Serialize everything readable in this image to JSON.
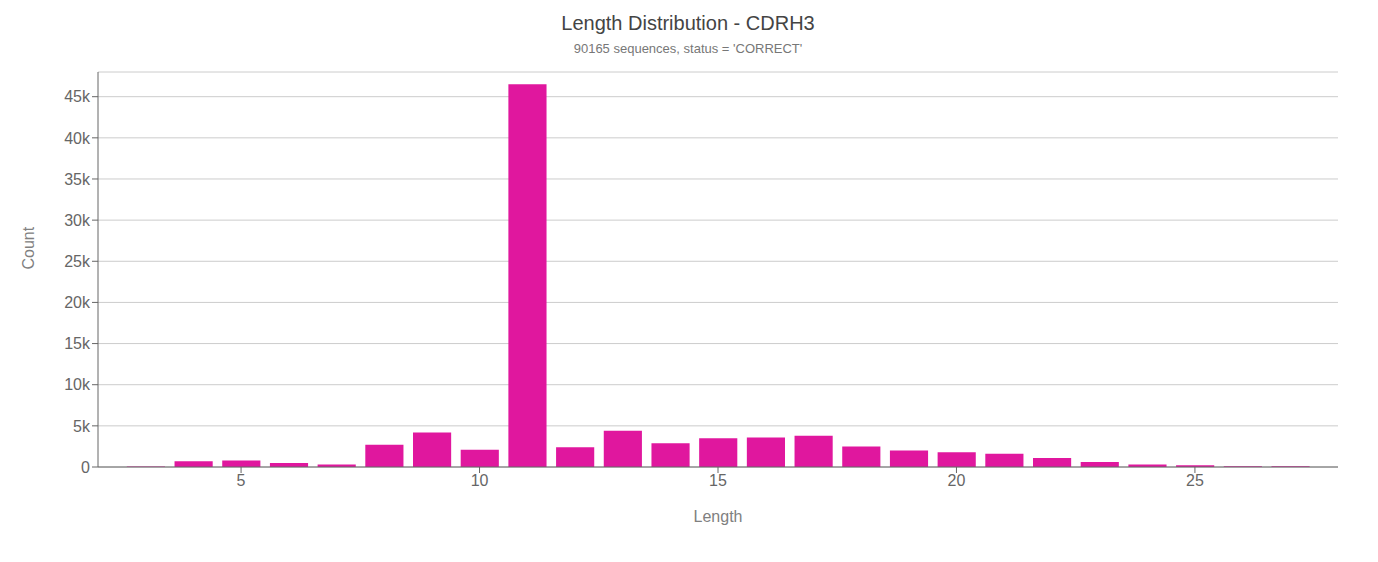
{
  "chart_data": {
    "type": "bar",
    "title": "Length Distribution - CDRH3",
    "subtitle": "90165 sequences, status = 'CORRECT'",
    "x_label": "Length",
    "y_label": "Count",
    "x": [
      3,
      4,
      5,
      6,
      7,
      8,
      9,
      10,
      11,
      12,
      13,
      14,
      15,
      16,
      17,
      18,
      19,
      20,
      21,
      22,
      23,
      24,
      25,
      26,
      27
    ],
    "values": [
      50,
      700,
      800,
      500,
      300,
      2700,
      4200,
      2100,
      46500,
      2400,
      4400,
      2900,
      3500,
      3600,
      3800,
      2500,
      2000,
      1800,
      1600,
      1100,
      600,
      300,
      200,
      100,
      100
    ],
    "color": "#e0179e",
    "xlim": [
      2.0,
      28.0
    ],
    "ylim": [
      0,
      48000
    ],
    "xticks": [
      5,
      10,
      15,
      20,
      25
    ],
    "yticks": [
      0,
      {
        "value": 5000,
        "label": "5k"
      },
      {
        "value": 10000,
        "label": "10k"
      },
      {
        "value": 15000,
        "label": "15k"
      },
      {
        "value": 20000,
        "label": "20k"
      },
      {
        "value": 25000,
        "label": "25k"
      },
      {
        "value": 30000,
        "label": "30k"
      },
      {
        "value": 35000,
        "label": "35k"
      },
      {
        "value": 40000,
        "label": "40k"
      },
      {
        "value": 45000,
        "label": "45k"
      }
    ],
    "grid": true
  }
}
